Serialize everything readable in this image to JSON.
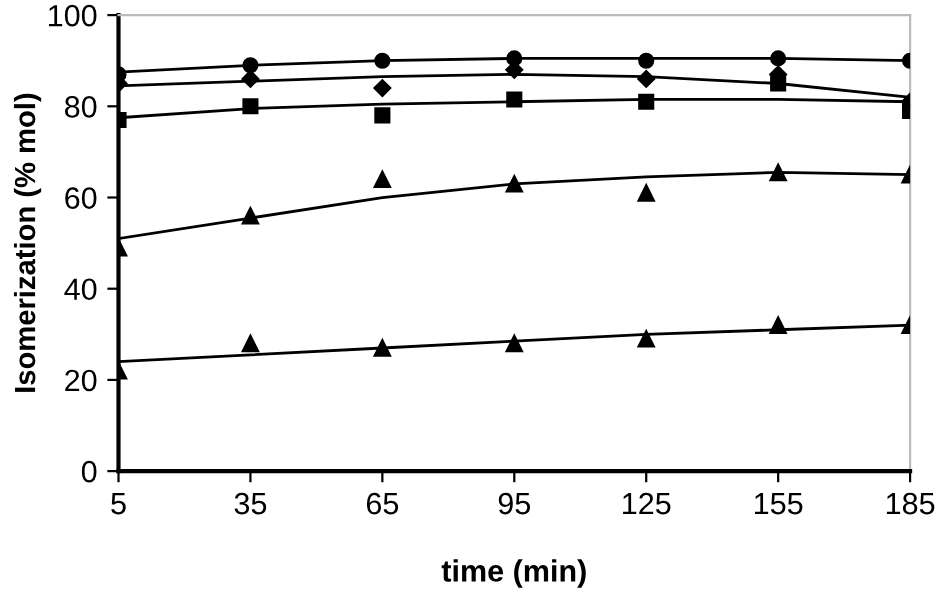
{
  "chart_data": {
    "type": "scatter",
    "xlabel": "time (min)",
    "ylabel": "Isomerization (% mol)",
    "xlim": [
      5,
      185
    ],
    "ylim": [
      0,
      100
    ],
    "xticks": [
      5,
      35,
      65,
      95,
      125,
      155,
      185
    ],
    "yticks": [
      0,
      20,
      40,
      60,
      80,
      100
    ],
    "grid": false,
    "legend": false,
    "x": [
      5,
      35,
      65,
      95,
      125,
      155,
      185
    ],
    "series": [
      {
        "color": "#000000",
        "marker": "circle",
        "values": [
          87,
          89,
          90,
          90.5,
          90,
          90.5,
          90
        ]
      },
      {
        "color": "#000000",
        "marker": "diamond",
        "values": [
          85,
          86,
          84,
          88,
          86,
          87,
          81
        ]
      },
      {
        "color": "#000000",
        "marker": "square",
        "values": [
          77,
          80,
          78,
          81.5,
          81,
          85,
          79
        ]
      },
      {
        "color": "#000000",
        "marker": "triangle",
        "values": [
          49,
          56,
          64,
          63,
          61,
          65.5,
          65
        ]
      },
      {
        "color": "#000000",
        "marker": "triangle",
        "values": [
          22,
          28,
          27,
          28,
          29,
          32,
          32
        ]
      },
      {
        "type": "line",
        "color": "#000000",
        "marker": "none",
        "x": [
          5,
          35,
          65,
          95,
          125,
          155,
          185
        ],
        "values": [
          87.5,
          89,
          90,
          90.5,
          90.5,
          90.5,
          90
        ]
      },
      {
        "type": "line",
        "color": "#000000",
        "marker": "none",
        "x": [
          5,
          35,
          65,
          95,
          125,
          155,
          185
        ],
        "values": [
          84.5,
          85.5,
          86.5,
          87,
          86.5,
          85,
          82
        ]
      },
      {
        "type": "line",
        "color": "#000000",
        "marker": "none",
        "x": [
          5,
          35,
          65,
          95,
          125,
          155,
          185
        ],
        "values": [
          77.5,
          79.5,
          80.5,
          81,
          81.5,
          81.5,
          81
        ]
      },
      {
        "type": "line",
        "color": "#000000",
        "marker": "none",
        "x": [
          5,
          35,
          65,
          95,
          125,
          155,
          185
        ],
        "values": [
          51,
          55.5,
          60,
          63,
          64.5,
          65.5,
          65
        ]
      },
      {
        "type": "line",
        "color": "#000000",
        "marker": "none",
        "x": [
          5,
          35,
          65,
          95,
          125,
          155,
          185
        ],
        "values": [
          24,
          25.5,
          27,
          28.5,
          30,
          31,
          32
        ]
      }
    ]
  }
}
